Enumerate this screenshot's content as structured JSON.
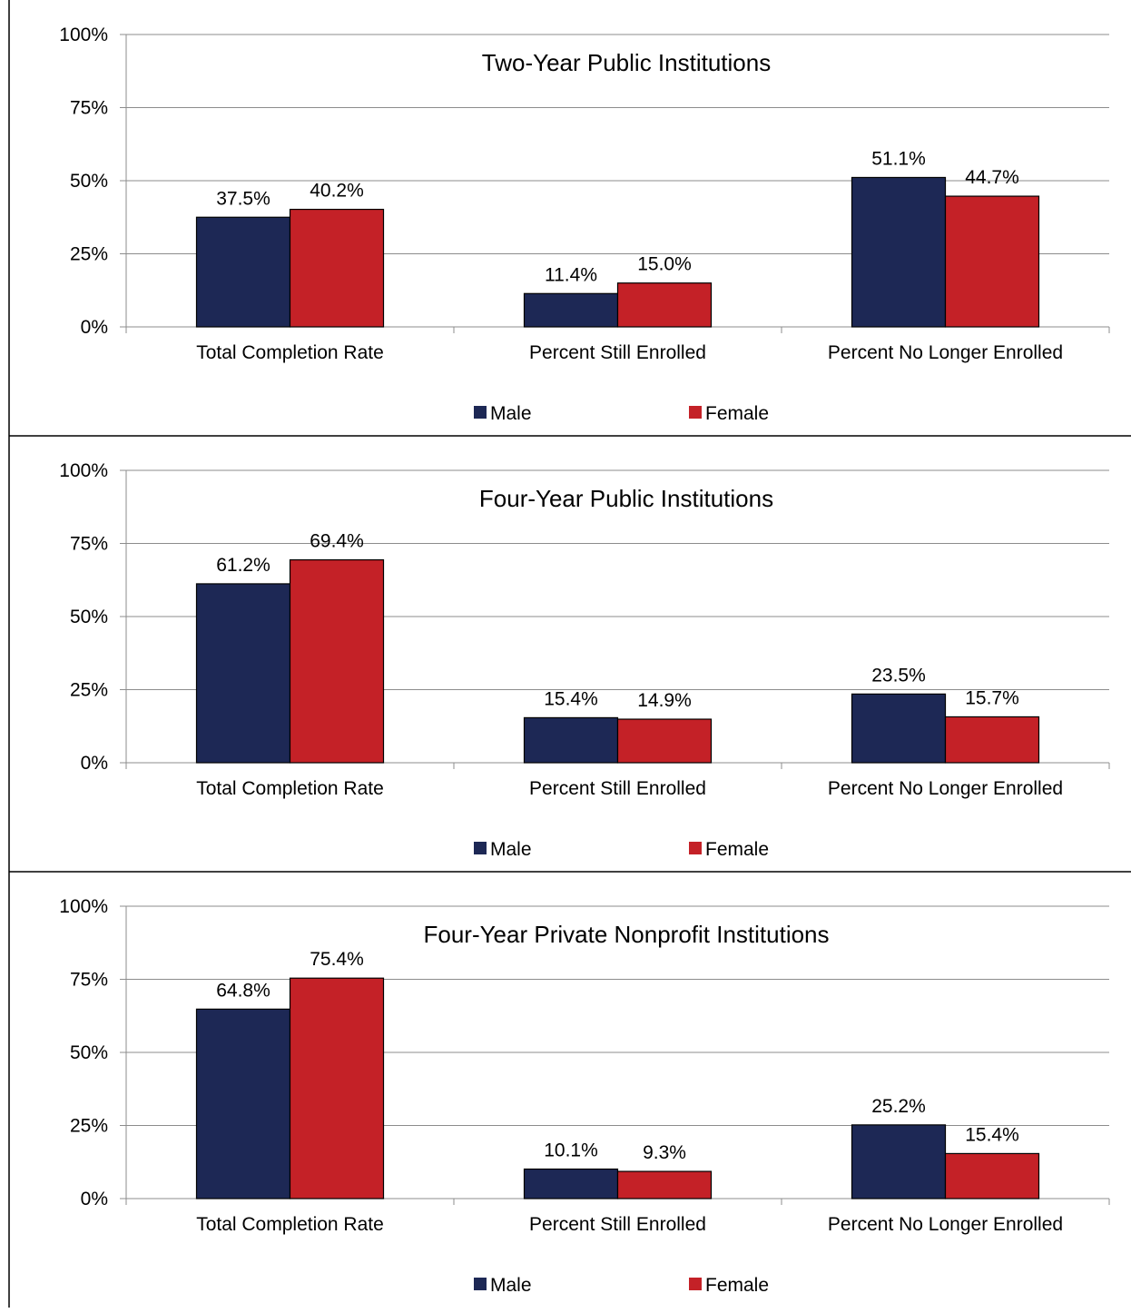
{
  "chart_data": [
    {
      "type": "bar",
      "title": "Two-Year Public Institutions",
      "categories": [
        "Total Completion Rate",
        "Percent Still Enrolled",
        "Percent No Longer Enrolled"
      ],
      "series": [
        {
          "name": "Male",
          "color": "#1d2855",
          "values": [
            37.5,
            11.4,
            51.1
          ],
          "labels": [
            "37.5%",
            "11.4%",
            "51.1%"
          ]
        },
        {
          "name": "Female",
          "color": "#c42127",
          "values": [
            40.2,
            15.0,
            44.7
          ],
          "labels": [
            "40.2%",
            "15.0%",
            "44.7%"
          ]
        }
      ],
      "yticks": [
        "0%",
        "25%",
        "50%",
        "75%",
        "100%"
      ],
      "ylim": [
        0,
        100
      ],
      "grid": true,
      "legend": "bottom"
    },
    {
      "type": "bar",
      "title": "Four-Year Public Institutions",
      "categories": [
        "Total Completion Rate",
        "Percent Still Enrolled",
        "Percent No Longer Enrolled"
      ],
      "series": [
        {
          "name": "Male",
          "color": "#1d2855",
          "values": [
            61.2,
            15.4,
            23.5
          ],
          "labels": [
            "61.2%",
            "15.4%",
            "23.5%"
          ]
        },
        {
          "name": "Female",
          "color": "#c42127",
          "values": [
            69.4,
            14.9,
            15.7
          ],
          "labels": [
            "69.4%",
            "14.9%",
            "15.7%"
          ]
        }
      ],
      "yticks": [
        "0%",
        "25%",
        "50%",
        "75%",
        "100%"
      ],
      "ylim": [
        0,
        100
      ],
      "grid": true,
      "legend": "bottom"
    },
    {
      "type": "bar",
      "title": "Four-Year Private Nonprofit Institutions",
      "categories": [
        "Total Completion Rate",
        "Percent Still Enrolled",
        "Percent No Longer Enrolled"
      ],
      "series": [
        {
          "name": "Male",
          "color": "#1d2855",
          "values": [
            64.8,
            10.1,
            25.2
          ],
          "labels": [
            "64.8%",
            "10.1%",
            "25.2%"
          ]
        },
        {
          "name": "Female",
          "color": "#c42127",
          "values": [
            75.4,
            9.3,
            15.4
          ],
          "labels": [
            "75.4%",
            "9.3%",
            "15.4%"
          ]
        }
      ],
      "yticks": [
        "0%",
        "25%",
        "50%",
        "75%",
        "100%"
      ],
      "ylim": [
        0,
        100
      ],
      "grid": true,
      "legend": "bottom"
    }
  ]
}
